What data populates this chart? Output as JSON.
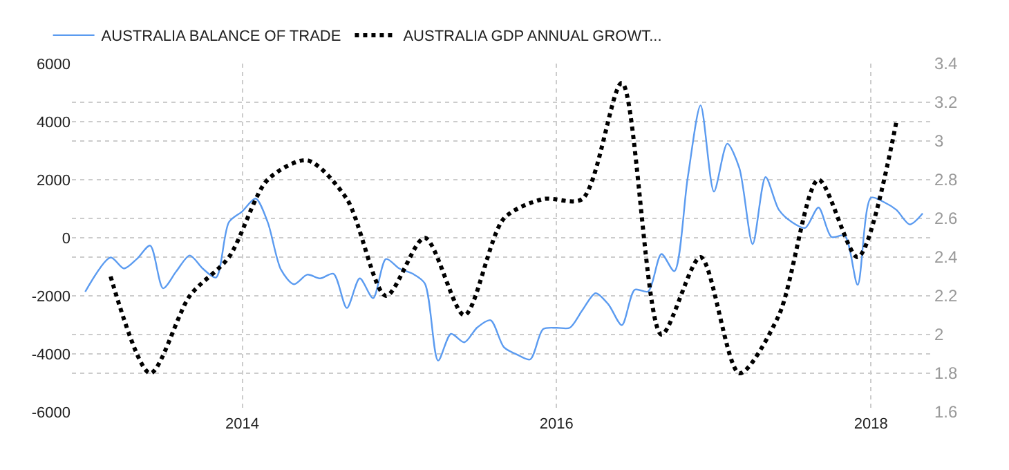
{
  "chart_data": {
    "type": "line",
    "legend": "top left",
    "grid": true,
    "xlim": [
      "2012-12-01",
      "2018-05-25"
    ],
    "xticks": [
      {
        "value": "2014-01-01",
        "label": "2014"
      },
      {
        "value": "2016-01-01",
        "label": "2016"
      },
      {
        "value": "2018-01-01",
        "label": "2018"
      }
    ],
    "ylim": [
      -6000,
      6000
    ],
    "yticks": [
      -6000,
      -4000,
      -2000,
      0,
      2000,
      4000,
      6000
    ],
    "y2lim": [
      1.6,
      3.4
    ],
    "y2ticks": [
      1.6,
      1.8,
      2,
      2.2,
      2.4,
      2.6,
      2.8,
      3,
      3.2,
      3.4
    ],
    "series": [
      {
        "name": "AUSTRALIA BALANCE OF TRADE",
        "color": "#5b9bf0",
        "line_style": "solid",
        "x": [
          "2013-01",
          "2013-03",
          "2013-04",
          "2013-05",
          "2013-06",
          "2013-07",
          "2013-08",
          "2013-09",
          "2013-10",
          "2013-11",
          "2013-12",
          "2014-01",
          "2014-02",
          "2014-03",
          "2014-04",
          "2014-05",
          "2014-06",
          "2014-07",
          "2014-08",
          "2014-09",
          "2014-10",
          "2014-11",
          "2014-12",
          "2015-01",
          "2015-02",
          "2015-03",
          "2015-04",
          "2015-05",
          "2015-06",
          "2015-07",
          "2015-08",
          "2015-09",
          "2015-10",
          "2015-11",
          "2015-12",
          "2016-01",
          "2016-02",
          "2016-03",
          "2016-04",
          "2016-05",
          "2016-06",
          "2016-07",
          "2016-08",
          "2016-09",
          "2016-10",
          "2016-11",
          "2016-12",
          "2017-01",
          "2017-02",
          "2017-03",
          "2017-04",
          "2017-05",
          "2017-06",
          "2017-07",
          "2017-08",
          "2017-09",
          "2017-10",
          "2017-11",
          "2017-12",
          "2018-01",
          "2018-02",
          "2018-03",
          "2018-04",
          "2018-05"
        ],
        "values": [
          -1860,
          -680,
          -1060,
          -730,
          -270,
          -1740,
          -1150,
          -610,
          -1060,
          -1370,
          540,
          910,
          1350,
          540,
          -1100,
          -1600,
          -1270,
          -1400,
          -1240,
          -2420,
          -1400,
          -2080,
          -730,
          -1060,
          -1240,
          -1570,
          -4230,
          -3310,
          -3600,
          -3090,
          -2840,
          -3770,
          -4020,
          -4190,
          -3150,
          -3100,
          -3100,
          -2500,
          -1910,
          -2300,
          -3010,
          -1790,
          -1850,
          -560,
          -1150,
          2060,
          4560,
          1590,
          3240,
          2400,
          -220,
          2090,
          960,
          540,
          340,
          1040,
          30,
          70,
          -1620,
          1380,
          1220,
          960,
          460,
          840
        ]
      },
      {
        "name": "AUSTRALIA GDP ANNUAL GROWT...",
        "color": "#000000",
        "line_style": "dotted",
        "axis": "y2",
        "x": [
          "2013-03",
          "2013-06",
          "2013-09",
          "2013-12",
          "2014-03",
          "2014-06",
          "2014-09",
          "2014-12",
          "2015-03",
          "2015-06",
          "2015-09",
          "2015-12",
          "2016-03",
          "2016-06",
          "2016-09",
          "2016-12",
          "2017-03",
          "2017-06",
          "2017-09",
          "2017-12",
          "2018-03"
        ],
        "values": [
          2.3,
          1.8,
          2.2,
          2.4,
          2.8,
          2.9,
          2.7,
          2.2,
          2.5,
          2.1,
          2.6,
          2.7,
          2.7,
          3.3,
          2.0,
          2.4,
          1.8,
          2.1,
          2.8,
          2.4,
          3.1
        ]
      }
    ]
  }
}
